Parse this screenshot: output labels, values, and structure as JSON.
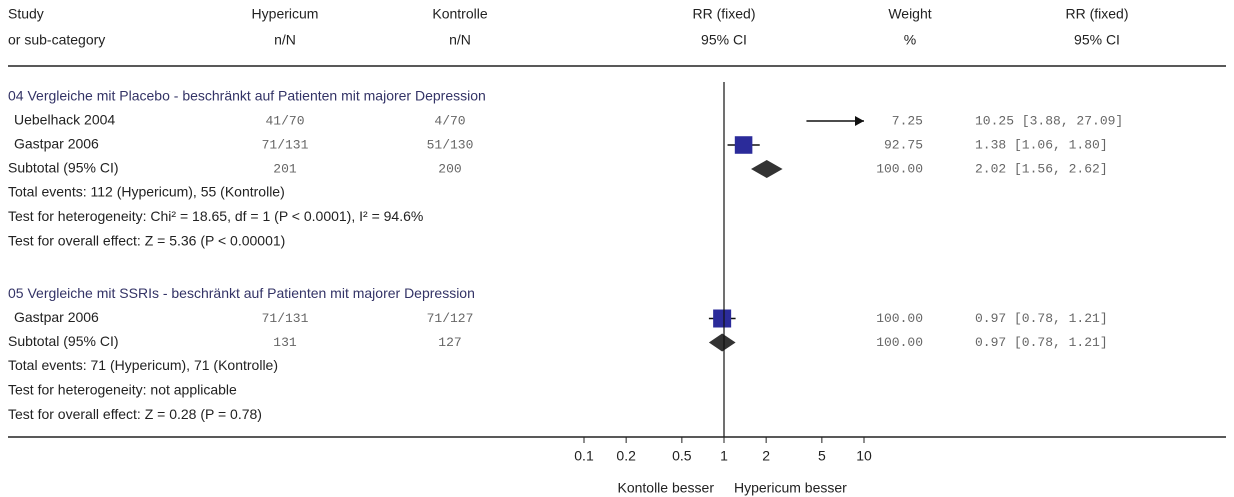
{
  "chart_data": {
    "type": "forest",
    "headers": [
      [
        "Study",
        "or sub-category"
      ],
      [
        "Hypericum",
        "n/N"
      ],
      [
        "Kontrolle",
        "n/N"
      ],
      [
        "RR (fixed)",
        "95% CI"
      ],
      [
        "Weight",
        "%"
      ],
      [
        "RR (fixed)",
        "95% CI"
      ]
    ],
    "log": true,
    "xlim": [
      0.1,
      10
    ],
    "xticks": [
      0.1,
      0.2,
      0.5,
      1,
      2,
      5,
      10
    ],
    "favours": [
      "Kontolle besser",
      "Hypericum besser"
    ],
    "square_color": "#2b2b9a",
    "diamond_color": "#333333",
    "groups": [
      {
        "title": "04 Vergleiche mit Placebo - beschränkt auf Patienten mit majorer Depression",
        "studies": [
          {
            "name": "Uebelhack 2004",
            "treatment": "41/70",
            "control": "4/70",
            "weight": "7.25",
            "ci_label": "10.25 [3.88, 27.09]",
            "rr": 10.25,
            "ci": [
              3.88,
              27.09
            ]
          },
          {
            "name": "Gastpar 2006",
            "treatment": "71/131",
            "control": "51/130",
            "weight": "92.75",
            "ci_label": "1.38 [1.06, 1.80]",
            "rr": 1.38,
            "ci": [
              1.06,
              1.8
            ]
          }
        ],
        "subtotal": {
          "name": "Subtotal (95% CI)",
          "treatment": "201",
          "control": "200",
          "weight": "100.00",
          "ci_label": "2.02 [1.56, 2.62]",
          "rr": 2.02,
          "ci": [
            1.56,
            2.62
          ]
        },
        "notes": [
          "Total events: 112 (Hypericum), 55 (Kontrolle)",
          "Test for heterogeneity: Chi² = 18.65, df = 1 (P < 0.0001), I² = 94.6%",
          "Test for overall effect: Z = 5.36 (P < 0.00001)"
        ]
      },
      {
        "title": "05 Vergleiche mit SSRIs - beschränkt auf Patienten mit majorer Depression",
        "studies": [
          {
            "name": "Gastpar 2006",
            "treatment": "71/131",
            "control": "71/127",
            "weight": "100.00",
            "ci_label": "0.97 [0.78, 1.21]",
            "rr": 0.97,
            "ci": [
              0.78,
              1.21
            ]
          }
        ],
        "subtotal": {
          "name": "Subtotal (95% CI)",
          "treatment": "131",
          "control": "127",
          "weight": "100.00",
          "ci_label": "0.97 [0.78, 1.21]",
          "rr": 0.97,
          "ci": [
            0.78,
            1.21
          ]
        },
        "notes": [
          "Total events: 71 (Hypericum), 71 (Kontrolle)",
          "Test for heterogeneity: not applicable",
          "Test for overall effect: Z = 0.28 (P = 0.78)"
        ]
      }
    ]
  }
}
